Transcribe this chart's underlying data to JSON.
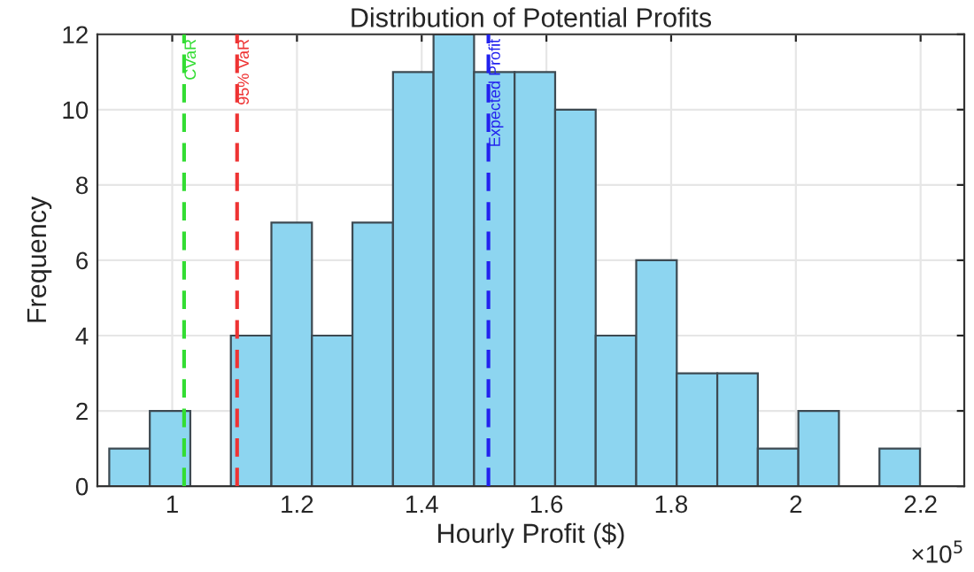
{
  "chart_data": {
    "type": "histogram",
    "title": "Distribution of Potential Profits",
    "xlabel": "Hourly Profit ($)",
    "ylabel": "Frequency",
    "bins": [
      0.899,
      0.964,
      1.029,
      1.094,
      1.159,
      1.224,
      1.289,
      1.354,
      1.419,
      1.484,
      1.549,
      1.614,
      1.679,
      1.744,
      1.809,
      1.874,
      1.939,
      2.004,
      2.069,
      2.134,
      2.199
    ],
    "values": [
      1,
      2,
      0,
      4,
      7,
      4,
      7,
      11,
      12,
      11,
      11,
      10,
      4,
      6,
      3,
      3,
      1,
      2,
      0,
      1
    ],
    "color": "#8dd5f0",
    "xlim": [
      0.88,
      2.27
    ],
    "xticks": [
      1,
      1.2,
      1.4,
      1.6,
      1.8,
      2,
      2.2
    ],
    "ylim": [
      0,
      12
    ],
    "yticks": [
      0,
      2,
      4,
      6,
      8,
      10,
      12
    ],
    "grid": true,
    "ref_lines": [
      {
        "axis": "x",
        "value": 1.019,
        "label": "CVaR",
        "color": "#33dd33",
        "line_style": "dashed"
      },
      {
        "axis": "x",
        "value": 1.104,
        "label": "95% VaR",
        "color": "#ee3333",
        "line_style": "dashed"
      },
      {
        "axis": "x",
        "value": 1.507,
        "label": "Expected Profit",
        "color": "#2222ee",
        "line_style": "dashed"
      }
    ],
    "annotations": [
      "×10$^{5}$"
    ]
  }
}
